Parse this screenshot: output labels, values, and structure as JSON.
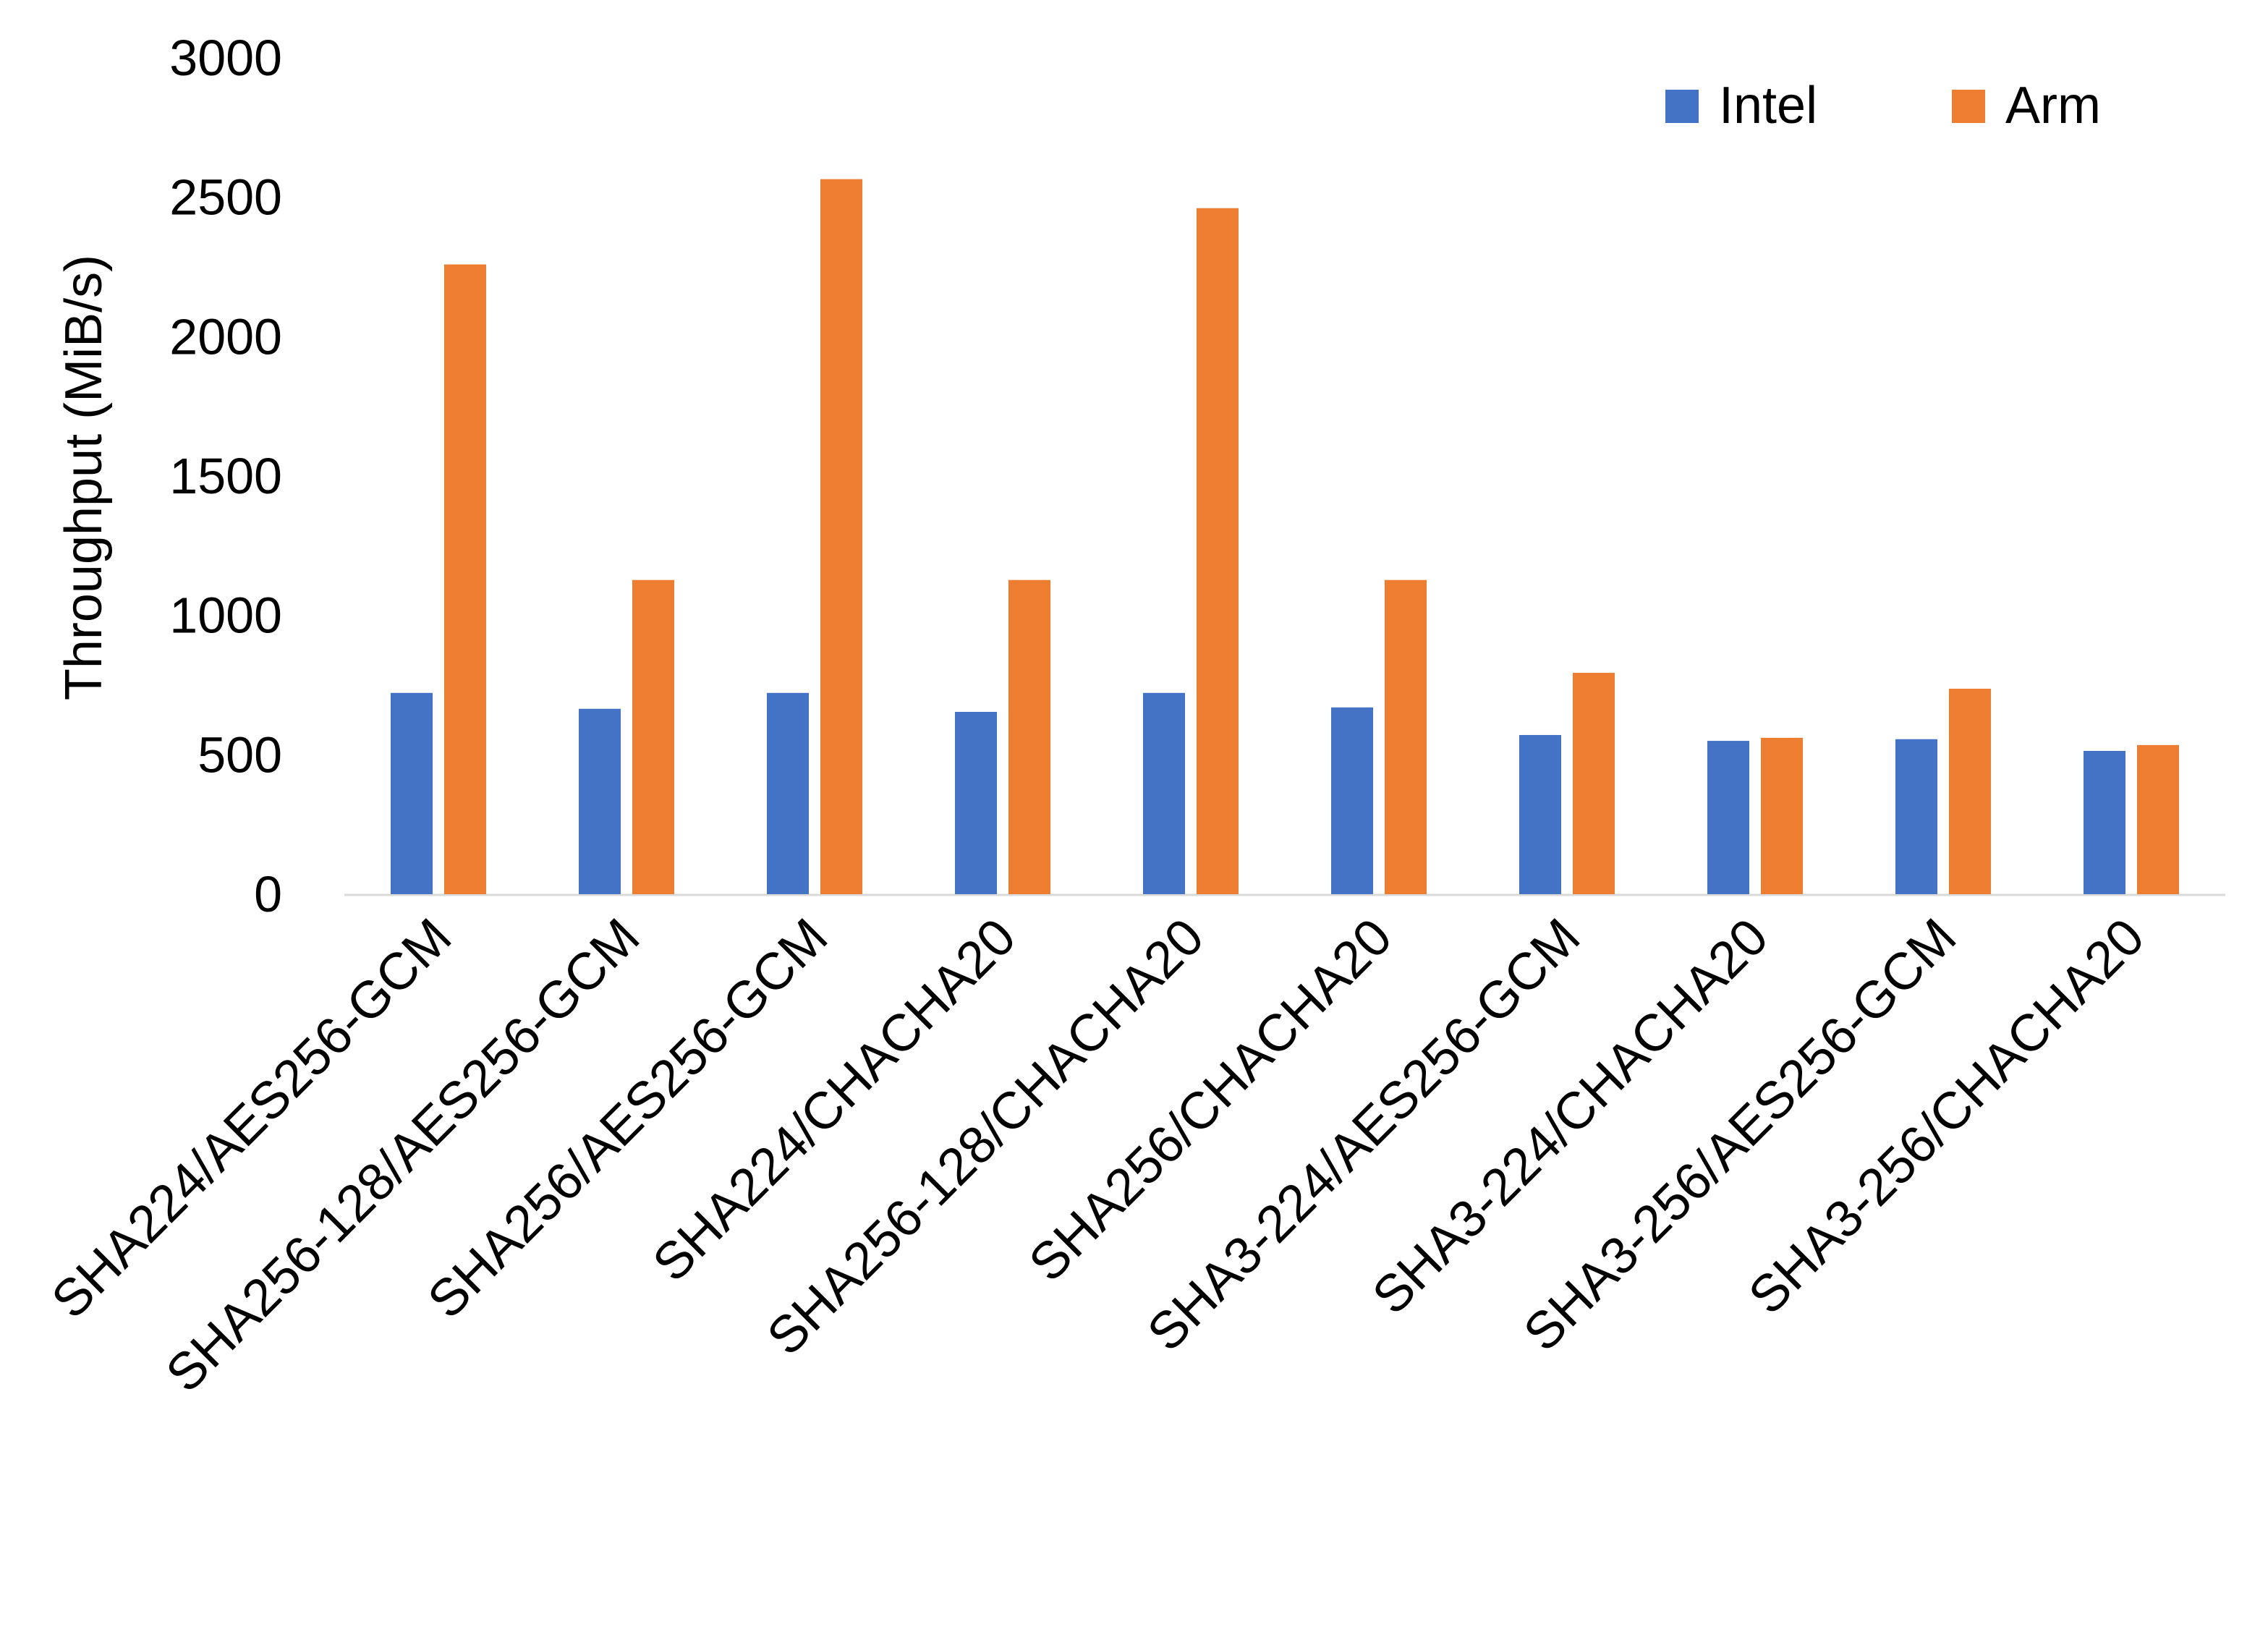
{
  "chart_data": {
    "type": "bar",
    "title": "",
    "xlabel": "",
    "ylabel": "Throughput (MiB/s)",
    "ylim": [
      0,
      3000
    ],
    "yticks": [
      0,
      500,
      1000,
      1500,
      2000,
      2500,
      3000
    ],
    "grid": false,
    "legend_position": "top-right",
    "categories": [
      "SHA224/AES256-GCM",
      "SHA256-128/AES256-GCM",
      "SHA256/AES256-GCM",
      "SHA224/CHACHA20",
      "SHA256-128/CHACHA20",
      "SHA256/CHACHA20",
      "SHA3-224/AES256-GCM",
      "SHA3-224/CHACHA20",
      "SHA3-256/AES256-GCM",
      "SHA3-256/CHACHA20"
    ],
    "series": [
      {
        "name": "Intel",
        "color": "#4472C4",
        "values": [
          722,
          665,
          722,
          654,
          722,
          670,
          571,
          550,
          556,
          514
        ]
      },
      {
        "name": "Arm",
        "color": "#ED7D31",
        "values": [
          2259,
          1127,
          2565,
          1127,
          2461,
          1127,
          794,
          561,
          737,
          535
        ]
      }
    ]
  }
}
